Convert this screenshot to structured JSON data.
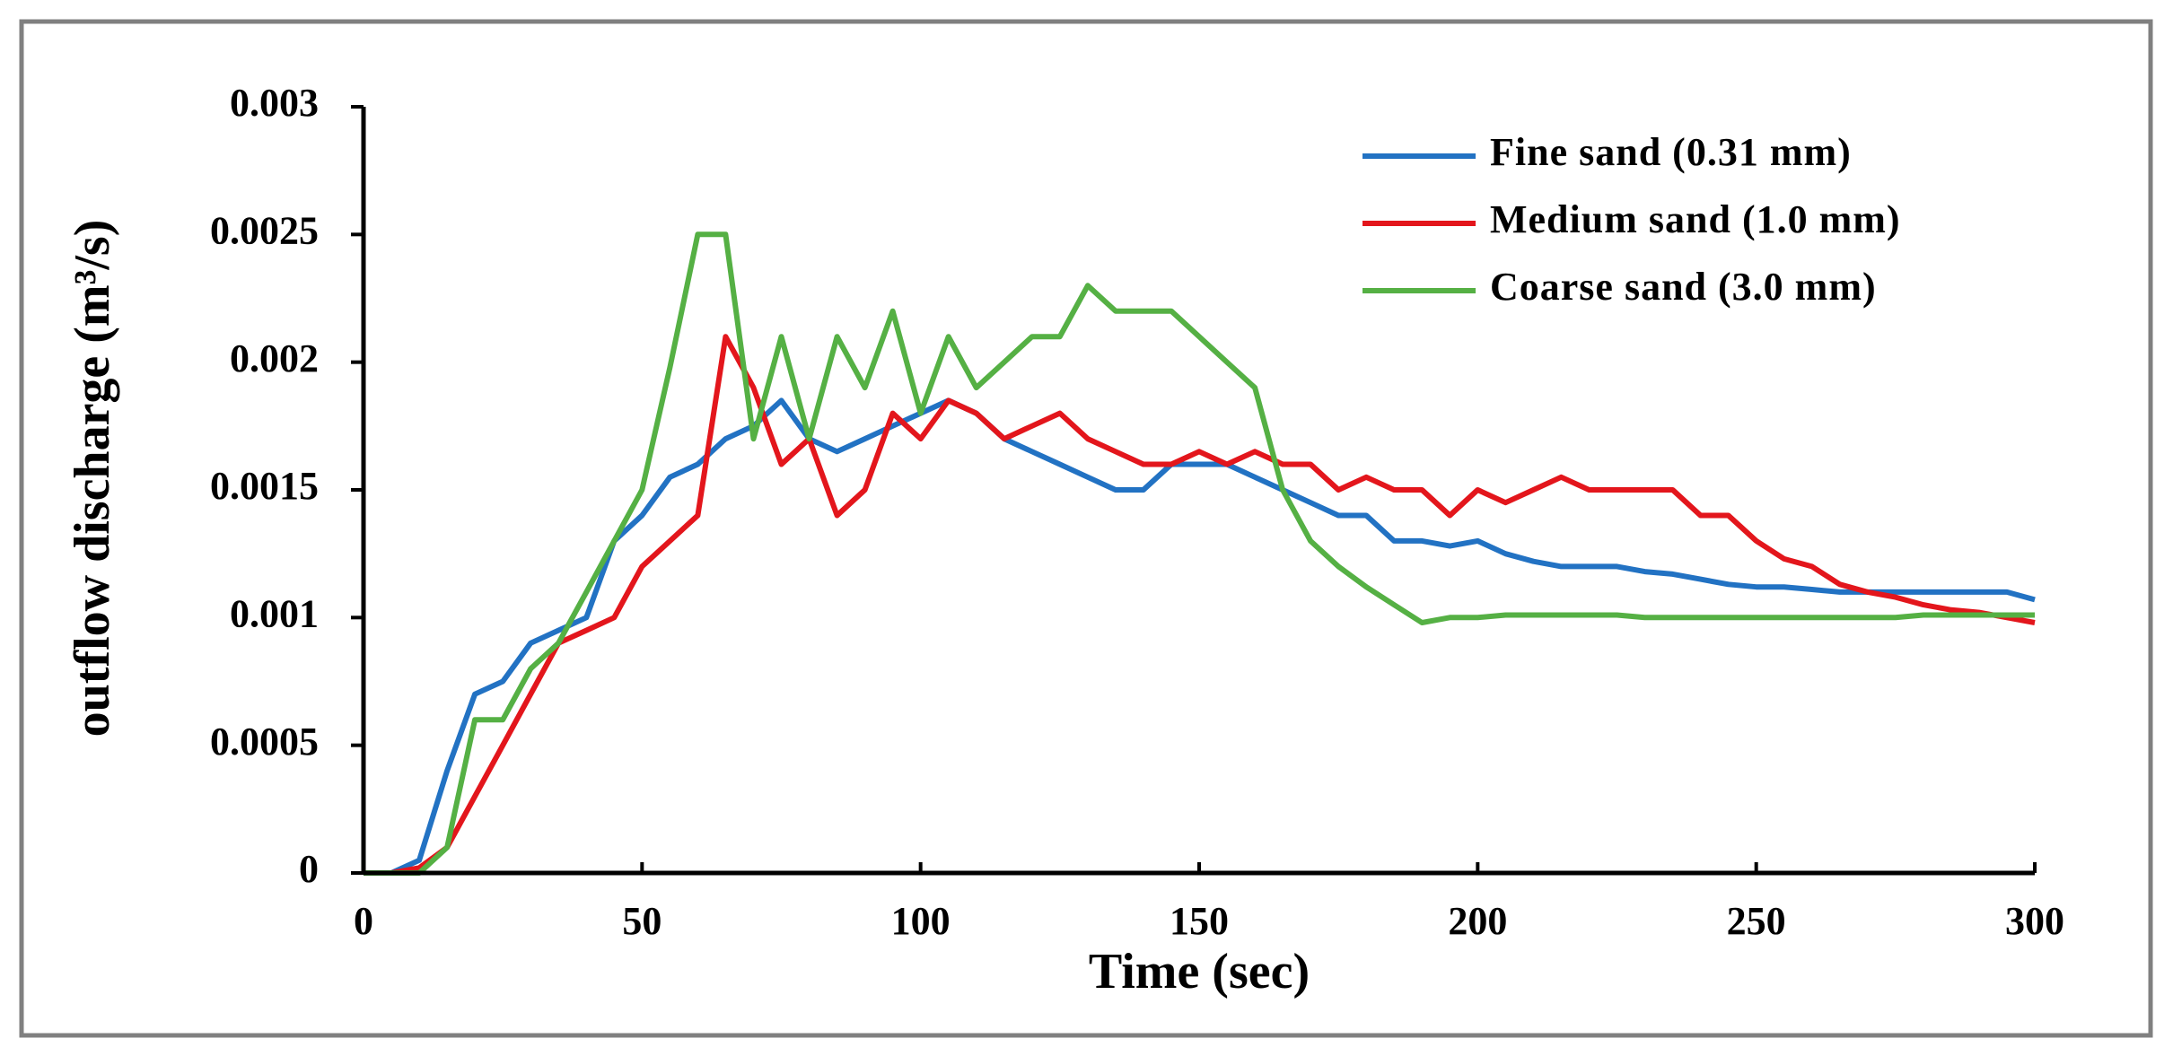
{
  "chart_data": {
    "type": "line",
    "xlabel": "Time (sec)",
    "ylabel": "outflow discharge (m³/s)",
    "x": [
      0,
      5,
      10,
      15,
      20,
      25,
      30,
      35,
      40,
      45,
      50,
      55,
      60,
      65,
      70,
      75,
      80,
      85,
      90,
      95,
      100,
      105,
      110,
      115,
      120,
      125,
      130,
      135,
      140,
      145,
      150,
      155,
      160,
      165,
      170,
      175,
      180,
      185,
      190,
      195,
      200,
      205,
      210,
      215,
      220,
      225,
      230,
      235,
      240,
      245,
      250,
      255,
      260,
      265,
      270,
      275,
      280,
      285,
      290,
      295,
      300
    ],
    "xlim": [
      0,
      300
    ],
    "xticks": [
      0,
      50,
      100,
      150,
      200,
      250,
      300
    ],
    "ylim": [
      0,
      0.003
    ],
    "yticks": [
      0,
      0.0005,
      0.001,
      0.0015,
      0.002,
      0.0025,
      0.003
    ],
    "legend": "upper right",
    "series": [
      {
        "name": "Fine sand (0.31 mm)",
        "color": "#2272c3",
        "values": [
          0,
          0,
          5e-05,
          0.0004,
          0.0007,
          0.00075,
          0.0009,
          0.00095,
          0.001,
          0.0013,
          0.0014,
          0.00155,
          0.0016,
          0.0017,
          0.00175,
          0.00185,
          0.0017,
          0.00165,
          0.0017,
          0.00175,
          0.0018,
          0.00185,
          0.0018,
          0.0017,
          0.00165,
          0.0016,
          0.00155,
          0.0015,
          0.0015,
          0.0016,
          0.0016,
          0.0016,
          0.00155,
          0.0015,
          0.00145,
          0.0014,
          0.0014,
          0.0013,
          0.0013,
          0.00128,
          0.0013,
          0.00125,
          0.00122,
          0.0012,
          0.0012,
          0.0012,
          0.00118,
          0.00117,
          0.00115,
          0.00113,
          0.00112,
          0.00112,
          0.00111,
          0.0011,
          0.0011,
          0.0011,
          0.0011,
          0.0011,
          0.0011,
          0.0011,
          0.00107
        ]
      },
      {
        "name": "Medium sand (1.0 mm)",
        "color": "#e3161c",
        "values": [
          0,
          0,
          2e-05,
          0.0001,
          0.0003,
          0.0005,
          0.0007,
          0.0009,
          0.00095,
          0.001,
          0.0012,
          0.0013,
          0.0014,
          0.0021,
          0.0019,
          0.0016,
          0.0017,
          0.0014,
          0.0015,
          0.0018,
          0.0017,
          0.00185,
          0.0018,
          0.0017,
          0.00175,
          0.0018,
          0.0017,
          0.00165,
          0.0016,
          0.0016,
          0.00165,
          0.0016,
          0.00165,
          0.0016,
          0.0016,
          0.0015,
          0.00155,
          0.0015,
          0.0015,
          0.0014,
          0.0015,
          0.00145,
          0.0015,
          0.00155,
          0.0015,
          0.0015,
          0.0015,
          0.0015,
          0.0014,
          0.0014,
          0.0013,
          0.00123,
          0.0012,
          0.00113,
          0.0011,
          0.00108,
          0.00105,
          0.00103,
          0.00102,
          0.001,
          0.00098
        ]
      },
      {
        "name": "Coarse sand (3.0 mm)",
        "color": "#55b044",
        "values": [
          0,
          0,
          0,
          0.0001,
          0.0006,
          0.0006,
          0.0008,
          0.0009,
          0.0011,
          0.0013,
          0.0015,
          0.00198,
          0.0025,
          0.0025,
          0.0017,
          0.0021,
          0.0017,
          0.0021,
          0.0019,
          0.0022,
          0.0018,
          0.0021,
          0.0019,
          0.002,
          0.0021,
          0.0021,
          0.0023,
          0.0022,
          0.0022,
          0.0022,
          0.0021,
          0.002,
          0.0019,
          0.0015,
          0.0013,
          0.0012,
          0.00112,
          0.00105,
          0.00098,
          0.001,
          0.001,
          0.00101,
          0.00101,
          0.00101,
          0.00101,
          0.00101,
          0.001,
          0.001,
          0.001,
          0.001,
          0.001,
          0.001,
          0.001,
          0.001,
          0.001,
          0.001,
          0.00101,
          0.00101,
          0.00101,
          0.00101,
          0.00101
        ]
      }
    ]
  }
}
